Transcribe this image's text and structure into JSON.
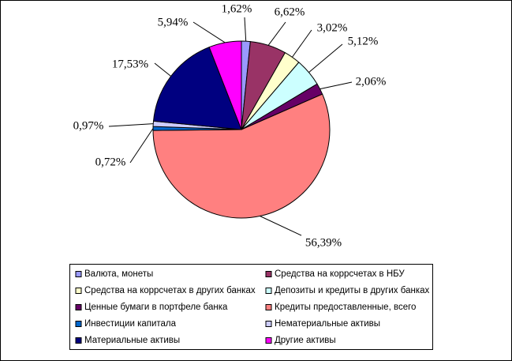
{
  "chart_data": {
    "type": "pie",
    "categories": [
      "Валюта, монеты",
      "Средства на коррсчетах в НБУ",
      "Средства на коррсчетах в других банках",
      "Депозиты и кредиты в других банках",
      "Ценные бумаги в портфеле банка",
      "Кредиты предоставленные, всего",
      "Инвестиции капитала",
      "Нематериальные активы",
      "Материальные активы",
      "Другие активы"
    ],
    "values": [
      1.62,
      6.62,
      3.02,
      5.12,
      2.06,
      56.39,
      0.72,
      0.97,
      17.53,
      5.94
    ],
    "value_labels": [
      "1,62%",
      "6,62%",
      "3,02%",
      "5,12%",
      "2,06%",
      "56,39%",
      "0,72%",
      "0,97%",
      "17,53%",
      "5,94%"
    ],
    "colors": [
      "#9999ff",
      "#993366",
      "#ffffcc",
      "#ccffff",
      "#660066",
      "#ff8080",
      "#0066cc",
      "#ccccff",
      "#000080",
      "#ff00ff"
    ]
  }
}
